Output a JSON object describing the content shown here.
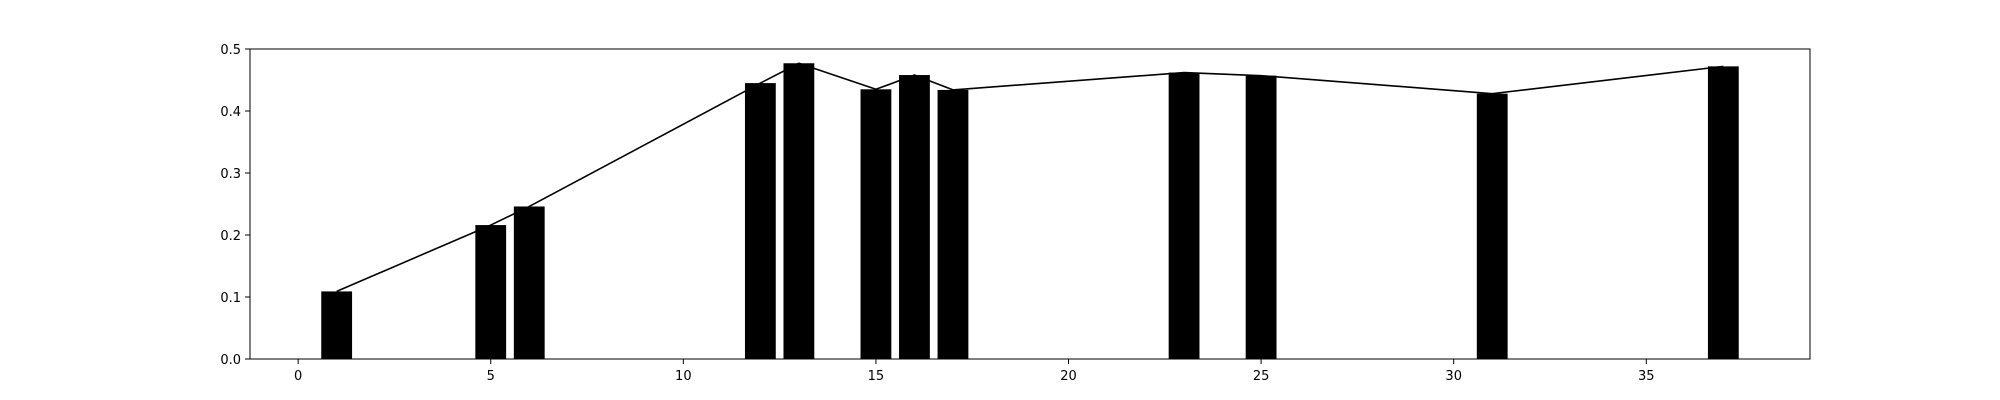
{
  "chart_data": {
    "type": "bar",
    "title": "",
    "xlabel": "",
    "ylabel": "",
    "xlim": [
      -1.25,
      39.25
    ],
    "ylim": [
      0,
      0.5
    ],
    "grid": false,
    "x_ticks": [
      0,
      5,
      10,
      15,
      20,
      25,
      30,
      35
    ],
    "y_ticks": [
      0.0,
      0.1,
      0.2,
      0.3,
      0.4,
      0.5
    ],
    "x_tick_labels": [
      "0",
      "5",
      "10",
      "15",
      "20",
      "25",
      "30",
      "35"
    ],
    "y_tick_labels": [
      "0.0",
      "0.1",
      "0.2",
      "0.3",
      "0.4",
      "0.5"
    ],
    "x": [
      1,
      5,
      6,
      12,
      13,
      15,
      16,
      17,
      23,
      25,
      31,
      37
    ],
    "values": [
      0.109,
      0.216,
      0.246,
      0.445,
      0.477,
      0.435,
      0.458,
      0.434,
      0.462,
      0.457,
      0.428,
      0.472
    ],
    "bar_width": 0.8,
    "bar_color": "#000000",
    "line_color": "#000000",
    "overlay_line": true
  }
}
